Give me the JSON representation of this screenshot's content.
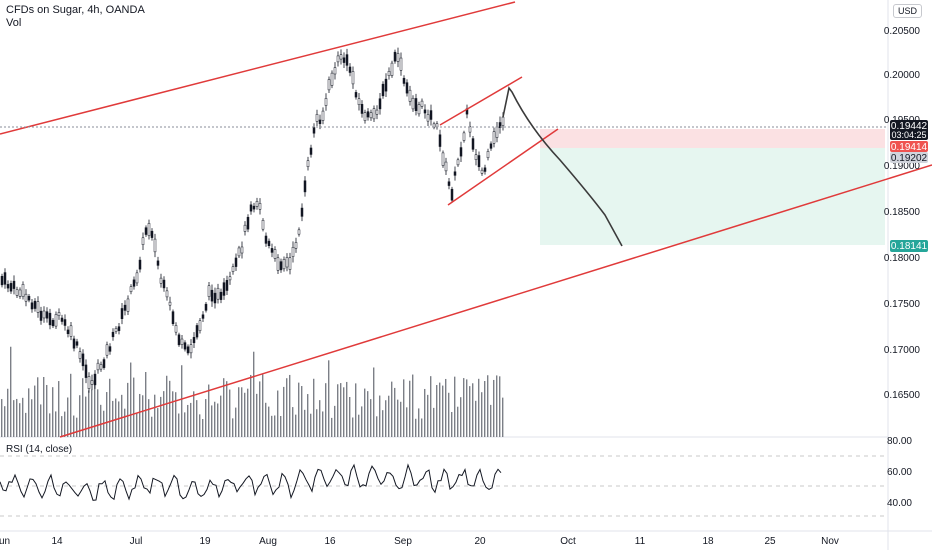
{
  "header": {
    "title": "CFDs on Sugar, 4h, OANDA",
    "volume_label": "Vol"
  },
  "currency_button": "USD",
  "rsi_label": "RSI (14, close)",
  "colors": {
    "trend": "#e03a3a",
    "candle": "#131722",
    "forecast": "#3b3b3b",
    "stop_zone": "#fbe1e3",
    "target_zone": "#e6f6f0",
    "price_tag": "#131722",
    "entry_tag": "#ef5350",
    "target_tag": "#26a69a"
  },
  "chart_data": {
    "type": "candlestick",
    "price_axis": {
      "ticks": [
        "0.20500",
        "0.20000",
        "0.19500",
        "0.19000",
        "0.18500",
        "0.18000",
        "0.17500",
        "0.17000",
        "0.16500"
      ]
    },
    "rsi_axis": {
      "ticks": [
        "80.00",
        "60.00",
        "40.00"
      ]
    },
    "time_axis": {
      "ticks": [
        "Jun",
        "14",
        "Jul",
        "19",
        "Aug",
        "16",
        "Sep",
        "20",
        "Oct",
        "11",
        "18",
        "25",
        "Nov"
      ]
    },
    "current_price": {
      "value": "0.19442",
      "countdown": "03:04:25"
    },
    "position": {
      "entry": "0.19414",
      "stop_label": "0.19202",
      "target": "0.18141"
    }
  }
}
